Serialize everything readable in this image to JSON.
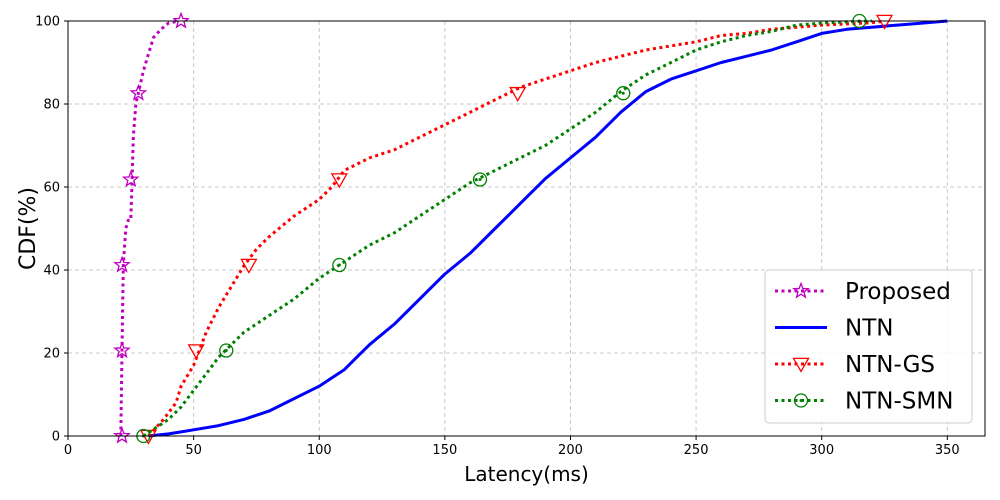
{
  "chart_data": {
    "type": "line",
    "xlabel": "Latency(ms)",
    "ylabel": "CDF(%)",
    "xlim": [
      0,
      365
    ],
    "ylim": [
      0,
      100
    ],
    "x_ticks": [
      0,
      50,
      100,
      150,
      200,
      250,
      300,
      350
    ],
    "y_ticks": [
      0,
      20,
      40,
      60,
      80,
      100
    ],
    "grid": true,
    "legend_position": "lower-right",
    "series": [
      {
        "name": "Proposed",
        "color": "#bf00bf",
        "line_style": "dotted",
        "marker": "star",
        "x": [
          21,
          21.5,
          22,
          23,
          24,
          25,
          25.5,
          26,
          27,
          28,
          30,
          32,
          34,
          37,
          40,
          44
        ],
        "y": [
          0,
          20.6,
          41.2,
          50,
          52,
          52,
          61.8,
          72,
          80,
          82.6,
          88,
          92,
          96,
          98,
          99.5,
          100
        ],
        "markers_x": [
          21.5,
          21.5,
          21.5,
          25,
          28,
          45
        ],
        "markers_y": [
          0,
          20.6,
          41.2,
          61.8,
          82.6,
          100
        ]
      },
      {
        "name": "NTN",
        "color": "#0000ff",
        "line_style": "solid",
        "marker": "",
        "x": [
          32,
          40,
          45,
          50,
          60,
          70,
          80,
          90,
          100,
          110,
          115,
          120,
          130,
          140,
          150,
          160,
          170,
          180,
          190,
          200,
          210,
          220,
          230,
          240,
          250,
          260,
          270,
          280,
          290,
          300,
          310,
          320,
          330,
          340,
          350
        ],
        "y": [
          0,
          0.5,
          1,
          1.5,
          2.5,
          4,
          6,
          9,
          12,
          16,
          19,
          22,
          27,
          33,
          39,
          44,
          50,
          56,
          62,
          67,
          72,
          78,
          83,
          86,
          88,
          90,
          91.5,
          93,
          95,
          97,
          98,
          98.5,
          99,
          99.5,
          100
        ],
        "markers_x": [],
        "markers_y": []
      },
      {
        "name": "NTN-GS",
        "color": "#ff0000",
        "line_style": "dotted",
        "marker": "triangle-down",
        "x": [
          32,
          38,
          43,
          45,
          50,
          55,
          60,
          65,
          70,
          75,
          80,
          90,
          100,
          105,
          110,
          120,
          130,
          140,
          150,
          160,
          170,
          180,
          190,
          200,
          210,
          220,
          230,
          240,
          250,
          260,
          270,
          280,
          290,
          300,
          310,
          320,
          325
        ],
        "y": [
          0,
          4,
          8,
          12,
          17,
          25,
          31,
          36,
          41,
          45,
          48,
          53,
          57,
          60,
          64,
          67,
          69,
          72,
          75,
          78,
          81,
          84,
          86,
          88,
          90,
          91.5,
          93,
          94,
          95,
          96.5,
          97,
          98,
          98.5,
          99,
          99.3,
          99.6,
          100
        ],
        "markers_x": [
          32,
          51,
          72,
          108,
          179,
          325
        ],
        "markers_y": [
          0,
          20.6,
          41.2,
          61.8,
          82.6,
          100
        ]
      },
      {
        "name": "NTN-SMN",
        "color": "#008000",
        "line_style": "dotted",
        "marker": "circle-dot",
        "x": [
          30,
          35,
          40,
          45,
          50,
          55,
          60,
          65,
          70,
          80,
          90,
          100,
          110,
          120,
          130,
          140,
          150,
          160,
          170,
          180,
          190,
          200,
          210,
          220,
          230,
          240,
          250,
          260,
          270,
          280,
          290,
          300,
          310,
          320
        ],
        "y": [
          0,
          2,
          4,
          7,
          11,
          15,
          19,
          22,
          25,
          29,
          33,
          38,
          42,
          46,
          49,
          53,
          57,
          61,
          64,
          67,
          70,
          74,
          78,
          83,
          87,
          90,
          93,
          95,
          96.5,
          97.5,
          99,
          99.5,
          99.8,
          100
        ],
        "markers_x": [
          30,
          63,
          108,
          164,
          221,
          315
        ],
        "markers_y": [
          0,
          20.6,
          41.2,
          61.8,
          82.6,
          100
        ]
      }
    ]
  }
}
